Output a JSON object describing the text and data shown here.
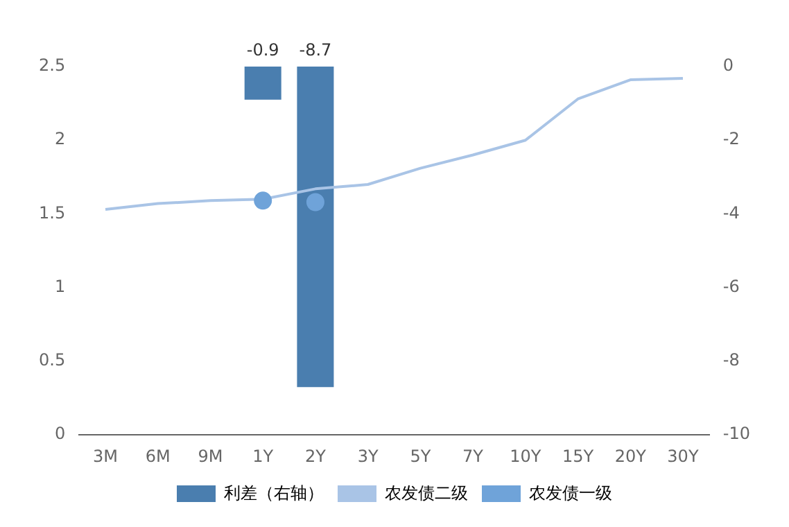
{
  "chart_data": {
    "type": "line",
    "categories": [
      "3M",
      "6M",
      "9M",
      "1Y",
      "2Y",
      "3Y",
      "5Y",
      "7Y",
      "10Y",
      "15Y",
      "20Y",
      "30Y"
    ],
    "series": [
      {
        "name": "利差（右轴）",
        "type": "bar",
        "axis": "y2",
        "color": "#4a7eaf",
        "values": [
          null,
          null,
          null,
          -0.9,
          -8.7,
          null,
          null,
          null,
          null,
          null,
          null,
          null
        ],
        "value_labels": [
          null,
          null,
          null,
          "-0.9",
          "-8.7",
          null,
          null,
          null,
          null,
          null,
          null,
          null
        ]
      },
      {
        "name": "农发债二级",
        "color": "#a9c4e6",
        "marker": "none",
        "values": [
          1.53,
          1.57,
          1.59,
          1.6,
          1.67,
          1.7,
          1.81,
          1.9,
          2.0,
          2.28,
          2.41,
          2.42
        ]
      },
      {
        "name": "农发债一级",
        "type": "scatter",
        "color": "#6fa3d9",
        "marker": "circle",
        "values": [
          null,
          null,
          null,
          1.59,
          1.58,
          null,
          null,
          null,
          null,
          null,
          null,
          null
        ]
      }
    ],
    "ylim": [
      0,
      2.5
    ],
    "yticks": [
      0,
      0.5,
      1,
      1.5,
      2,
      2.5
    ],
    "y2lim": [
      -10,
      0
    ],
    "y2ticks": [
      -10,
      -8,
      -6,
      -4,
      -2,
      0
    ],
    "grid": false,
    "legend": "bottom"
  }
}
